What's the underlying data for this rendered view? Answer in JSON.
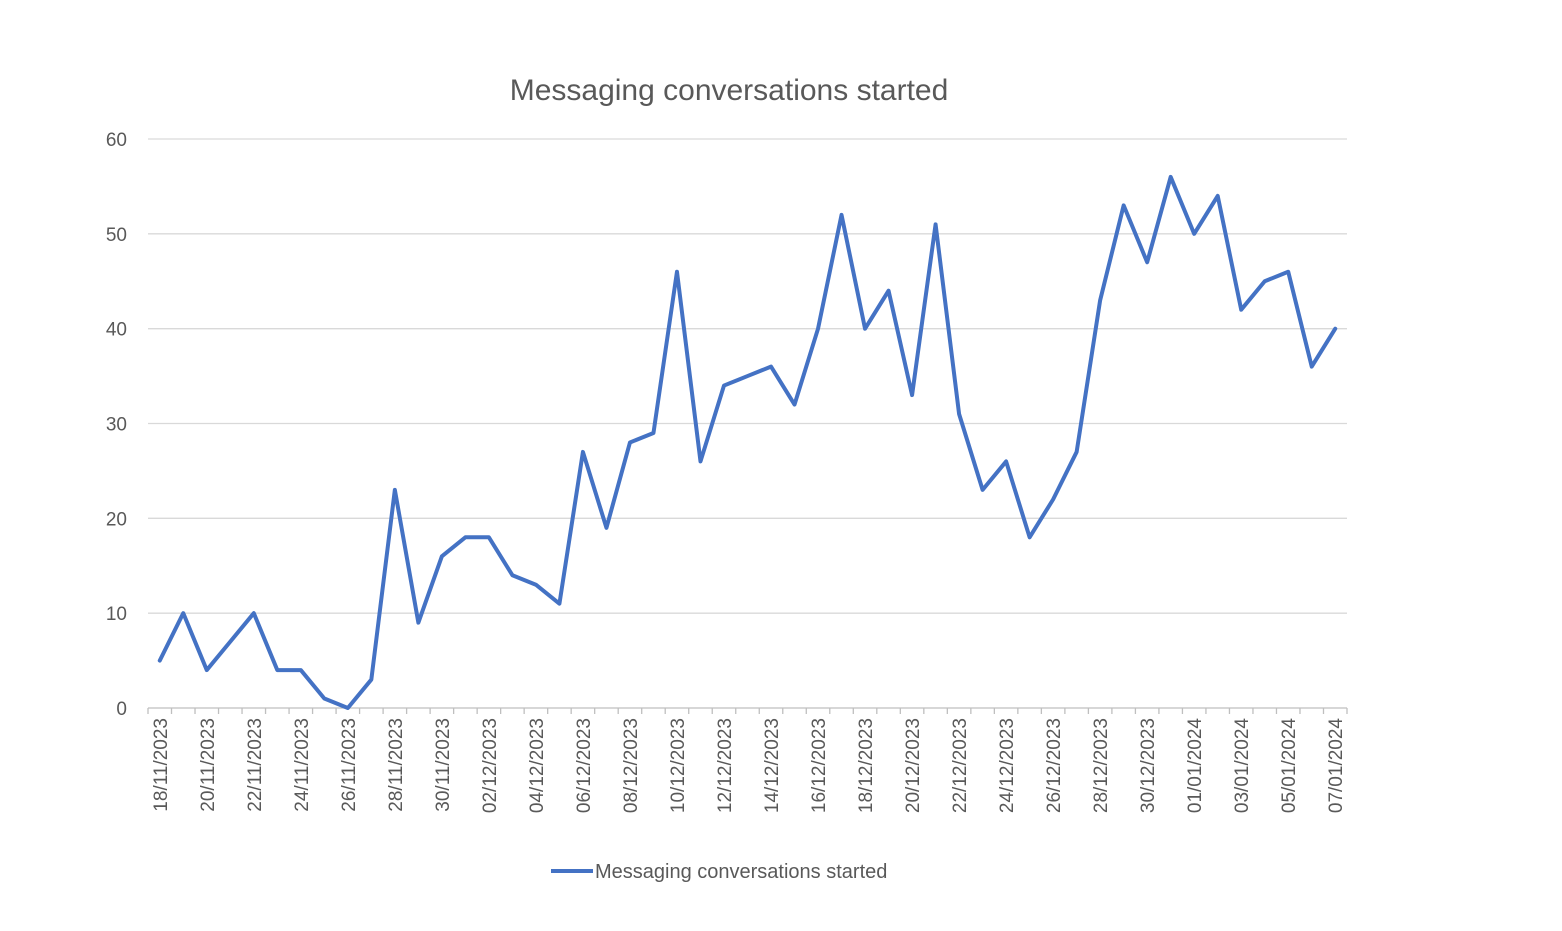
{
  "chart_data": {
    "type": "line",
    "title": "Messaging conversations started",
    "xlabel": "",
    "ylabel": "",
    "ylim": [
      0,
      60
    ],
    "yticks": [
      0,
      10,
      20,
      30,
      40,
      50,
      60
    ],
    "grid": true,
    "legend_position": "bottom",
    "x": [
      "18/11/2023",
      "19/11/2023",
      "20/11/2023",
      "21/11/2023",
      "22/11/2023",
      "23/11/2023",
      "24/11/2023",
      "25/11/2023",
      "26/11/2023",
      "27/11/2023",
      "28/11/2023",
      "29/11/2023",
      "30/11/2023",
      "01/12/2023",
      "02/12/2023",
      "03/12/2023",
      "04/12/2023",
      "05/12/2023",
      "06/12/2023",
      "07/12/2023",
      "08/12/2023",
      "09/12/2023",
      "10/12/2023",
      "11/12/2023",
      "12/12/2023",
      "13/12/2023",
      "14/12/2023",
      "15/12/2023",
      "16/12/2023",
      "17/12/2023",
      "18/12/2023",
      "19/12/2023",
      "20/12/2023",
      "21/12/2023",
      "22/12/2023",
      "23/12/2023",
      "24/12/2023",
      "25/12/2023",
      "26/12/2023",
      "27/12/2023",
      "28/12/2023",
      "29/12/2023",
      "30/12/2023",
      "31/12/2023",
      "01/01/2024",
      "02/01/2024",
      "03/01/2024",
      "04/01/2024",
      "05/01/2024",
      "06/01/2024",
      "07/01/2024"
    ],
    "xtick_labels": [
      "18/11/2023",
      "20/11/2023",
      "22/11/2023",
      "24/11/2023",
      "26/11/2023",
      "28/11/2023",
      "30/11/2023",
      "02/12/2023",
      "04/12/2023",
      "06/12/2023",
      "08/12/2023",
      "10/12/2023",
      "12/12/2023",
      "14/12/2023",
      "16/12/2023",
      "18/12/2023",
      "20/12/2023",
      "22/12/2023",
      "24/12/2023",
      "26/12/2023",
      "28/12/2023",
      "30/12/2023",
      "01/01/2024",
      "03/01/2024",
      "05/01/2024",
      "07/01/2024"
    ],
    "series": [
      {
        "name": "Messaging conversations started",
        "color": "#4472c4",
        "values": [
          5,
          10,
          4,
          7,
          10,
          4,
          4,
          1,
          0,
          3,
          23,
          9,
          16,
          18,
          18,
          14,
          13,
          11,
          27,
          19,
          28,
          29,
          46,
          26,
          34,
          35,
          36,
          32,
          40,
          52,
          40,
          44,
          33,
          51,
          31,
          23,
          26,
          18,
          22,
          27,
          43,
          53,
          47,
          56,
          50,
          54,
          42,
          45,
          46,
          36,
          40
        ]
      }
    ]
  }
}
